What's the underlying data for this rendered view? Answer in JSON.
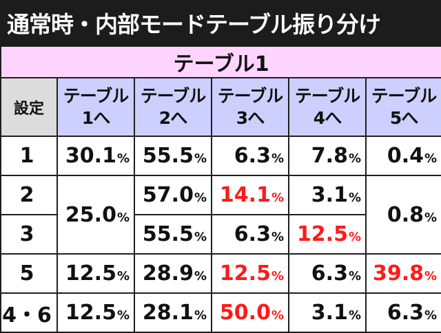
{
  "title": "通常時・内部モードテーブル振り分け",
  "section_label": "テーブル1",
  "setting_header": "設定",
  "columns": [
    {
      "line1": "テーブル",
      "line2": "1へ"
    },
    {
      "line1": "テーブル",
      "line2": "2へ"
    },
    {
      "line1": "テーブル",
      "line2": "3へ"
    },
    {
      "line1": "テーブル",
      "line2": "4へ"
    },
    {
      "line1": "テーブル",
      "line2": "5へ"
    }
  ],
  "percent_sign": "%",
  "highlight_color": "#ff1a1a",
  "rows": [
    {
      "setting": "1",
      "t1": "30.1",
      "t2": "55.5",
      "t3": "6.3",
      "t4": "7.8",
      "t5": "0.4"
    },
    {
      "setting": "2",
      "t1_merged": "25.0",
      "t2": "57.0",
      "t3": "14.1",
      "t4": "3.1",
      "t5_merged": "0.8"
    },
    {
      "setting": "3",
      "t2": "55.5",
      "t3": "6.3",
      "t4": "12.5"
    },
    {
      "setting": "5",
      "t1": "12.5",
      "t2": "28.9",
      "t3": "12.5",
      "t4": "6.3",
      "t5": "39.8"
    },
    {
      "setting": "4・6",
      "t1": "12.5",
      "t2": "28.1",
      "t3": "50.0",
      "t4": "3.1",
      "t5": "6.3"
    }
  ],
  "highlighted_cells": [
    "row2.t3",
    "row3.t4",
    "row4.t3",
    "row4.t5",
    "row5.t3"
  ]
}
